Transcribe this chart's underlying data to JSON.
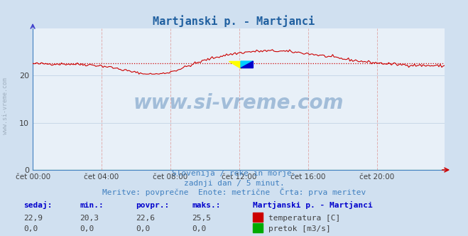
{
  "title": "Martjanski p. - Martjanci",
  "bg_color": "#d0e0f0",
  "plot_bg_color": "#e8f0f8",
  "grid_color_h": "#c8d8e8",
  "grid_color_v": "#e0c8c8",
  "ylim": [
    0,
    30
  ],
  "yticks": [
    0,
    10,
    20
  ],
  "xlim": [
    0,
    287
  ],
  "xtick_positions": [
    0,
    48,
    96,
    144,
    192,
    240
  ],
  "xtick_labels": [
    "čet 00:00",
    "čet 04:00",
    "čet 08:00",
    "čet 12:00",
    "čet 16:00",
    "čet 20:00"
  ],
  "line_color": "#cc0000",
  "avg_line_color": "#cc0000",
  "avg_value": 22.6,
  "watermark_text": "www.si-vreme.com",
  "watermark_color": "#2060a0",
  "watermark_alpha": 0.35,
  "sub_text1": "Slovenija / reke in morje.",
  "sub_text2": "zadnji dan / 5 minut.",
  "sub_text3": "Meritve: povprečne  Enote: metrične  Črta: prva meritev",
  "sub_text_color": "#4080c0",
  "legend_title": "Martjanski p. - Martjanci",
  "legend_title_color": "#0000cc",
  "label_sedaj": "sedaj:",
  "label_min": "min.:",
  "label_povpr": "povpr.:",
  "label_maks": "maks.:",
  "val_sedaj_temp": "22,9",
  "val_min_temp": "20,3",
  "val_povpr_temp": "22,6",
  "val_maks_temp": "25,5",
  "val_sedaj_flow": "0,0",
  "val_min_flow": "0,0",
  "val_povpr_flow": "0,0",
  "val_maks_flow": "0,0",
  "temp_label": "temperatura [C]",
  "flow_label": "pretok [m3/s]",
  "temp_color": "#cc0000",
  "flow_color": "#00aa00",
  "label_color": "#0000cc",
  "value_color": "#404040",
  "logo_colors": [
    "#ffff00",
    "#00ccff",
    "#0000cc"
  ]
}
